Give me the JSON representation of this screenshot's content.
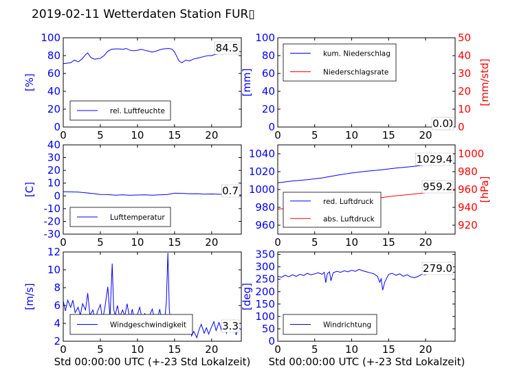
{
  "title": "2019-02-11 Wetterdaten Station FUR▯",
  "shared_xlabel": "Std 00:00:00 UTC (+-23 Std Lokalzeit)",
  "colors": {
    "blue": "#0000ff",
    "red": "#ff0000",
    "black": "#000000"
  },
  "chart_data": [
    {
      "type": "line",
      "id": "humidity",
      "ylabel": "[%]",
      "ylim": [
        0,
        100
      ],
      "yticks": [
        0,
        20,
        40,
        60,
        80,
        100
      ],
      "xlim": [
        0,
        24
      ],
      "xticks": [
        0,
        5,
        10,
        15,
        20
      ],
      "legend": "lower-left",
      "annotation": "84.5",
      "series": [
        {
          "name": "rel. Luftfeuchte",
          "color": "#0000ff",
          "x": [
            0,
            1,
            1.5,
            2,
            2.5,
            3,
            3.3,
            3.7,
            4.2,
            5,
            5.5,
            6,
            6.5,
            7,
            7.5,
            8,
            8.5,
            9,
            9.5,
            10,
            10.5,
            11,
            11.5,
            12,
            12.5,
            13,
            13.5,
            14,
            14.3,
            14.7,
            15,
            15.3,
            15.6,
            16,
            16.5,
            17,
            17.5,
            18,
            18.5,
            19,
            19.5,
            20,
            20.5,
            21,
            21.5,
            22,
            22.5,
            23,
            23.5,
            24
          ],
          "y": [
            71,
            72,
            75,
            73,
            76,
            81,
            83,
            78,
            76,
            77,
            80,
            85,
            87,
            87.5,
            87.5,
            87,
            88,
            86,
            85.5,
            86,
            87,
            86,
            85,
            84,
            85,
            86.5,
            87.5,
            88,
            88,
            87,
            84,
            79,
            74,
            72,
            75,
            74,
            76,
            77,
            78,
            79,
            80,
            80,
            81.5,
            82,
            83,
            82,
            84,
            84,
            84.5,
            84.5
          ]
        }
      ]
    },
    {
      "type": "line",
      "id": "precipitation",
      "ylabel": "[mm]",
      "ylabel_right": "[mm/std]",
      "ylim": [
        0,
        100
      ],
      "yticks": [
        0,
        20,
        40,
        60,
        80,
        100
      ],
      "ylim_right": [
        0,
        50
      ],
      "yticks_right": [
        0,
        10,
        20,
        30,
        40,
        50
      ],
      "xlim": [
        0,
        24
      ],
      "xticks": [
        0,
        5,
        10,
        15,
        20
      ],
      "legend": "top-left",
      "annotations": [
        "0.0",
        "0.0"
      ],
      "series": [
        {
          "name": "kum. Niederschlag",
          "color": "#0000ff",
          "axis": "left",
          "x": [
            0,
            24
          ],
          "y": [
            0,
            0
          ]
        },
        {
          "name": "Niederschlagsrate",
          "color": "#ff0000",
          "axis": "right",
          "x": [
            0,
            24
          ],
          "y": [
            0,
            0
          ]
        }
      ]
    },
    {
      "type": "line",
      "id": "temperature",
      "ylabel": "[C]",
      "ylim": [
        -30,
        40
      ],
      "yticks": [
        -30,
        -20,
        -10,
        0,
        10,
        20,
        30,
        40
      ],
      "xlim": [
        0,
        24
      ],
      "xticks": [
        0,
        5,
        10,
        15,
        20
      ],
      "legend": "lower-left",
      "annotation": "0.7",
      "series": [
        {
          "name": "Lufttemperatur",
          "color": "#0000ff",
          "x": [
            0,
            1,
            2,
            3,
            4,
            5,
            6,
            7,
            8,
            9,
            10,
            11,
            12,
            13,
            14,
            15,
            16,
            17,
            18,
            19,
            20,
            21,
            22,
            23,
            24
          ],
          "y": [
            3.2,
            3.1,
            3.0,
            2.4,
            1.8,
            1.1,
            1.0,
            0.6,
            0.8,
            0.5,
            0.7,
            0.8,
            0.6,
            0.8,
            1.0,
            2.1,
            2.0,
            1.6,
            1.7,
            1.4,
            1.5,
            1.3,
            1.1,
            0.8,
            0.7
          ]
        }
      ]
    },
    {
      "type": "line",
      "id": "pressure",
      "ylabel_right": "[hPa]",
      "ylim": [
        950,
        1050
      ],
      "yticks": [
        960,
        980,
        1000,
        1020,
        1040
      ],
      "ylim_right": [
        910,
        1010
      ],
      "yticks_right": [
        920,
        940,
        960,
        980,
        1000
      ],
      "xlim": [
        0,
        24
      ],
      "xticks": [
        0,
        5,
        10,
        15,
        20
      ],
      "legend": "lower-left",
      "annotations": [
        "1029.4",
        "959.2"
      ],
      "series": [
        {
          "name": "red. Luftdruck",
          "color": "#0000ff",
          "axis": "left",
          "x": [
            0,
            2,
            4,
            6,
            8,
            10,
            12,
            14,
            16,
            18,
            20,
            22,
            24
          ],
          "y": [
            1007.5,
            1009.5,
            1011,
            1013,
            1016,
            1018.5,
            1020.5,
            1022,
            1024,
            1025.5,
            1027.5,
            1028.8,
            1029.4
          ]
        },
        {
          "name": "abs. Luftdruck",
          "color": "#ff0000",
          "axis": "right",
          "x": [
            0,
            2,
            4,
            6,
            8,
            10,
            12,
            14,
            16,
            18,
            20,
            22,
            24
          ],
          "y": [
            938,
            939.5,
            941,
            943,
            945.5,
            947.5,
            949.5,
            951,
            953,
            954.5,
            956.5,
            958.2,
            959.2
          ]
        }
      ]
    },
    {
      "type": "line",
      "id": "windspeed",
      "ylabel": "[m/s]",
      "ylim": [
        2,
        12
      ],
      "yticks": [
        2,
        4,
        6,
        8,
        10,
        12
      ],
      "xlim": [
        0,
        24
      ],
      "xticks": [
        0,
        5,
        10,
        15,
        20
      ],
      "legend": "lower-left",
      "annotation": "3.3",
      "series": [
        {
          "name": "Windgeschwindigkeit",
          "color": "#0000ff",
          "x": [
            0,
            0.3,
            0.6,
            1,
            1.3,
            1.6,
            2,
            2.3,
            2.6,
            3,
            3.3,
            3.6,
            4,
            4.3,
            4.6,
            5,
            5.3,
            5.6,
            6,
            6.3,
            6.6,
            6.8,
            7,
            7.3,
            7.6,
            8,
            8.3,
            8.6,
            9,
            9.3,
            9.6,
            10,
            10.3,
            10.6,
            11,
            11.3,
            11.6,
            12,
            12.3,
            12.6,
            13,
            13.3,
            13.6,
            13.9,
            14.1,
            14.3,
            14.6,
            15,
            15.3,
            15.6,
            16,
            16.3,
            16.6,
            17,
            17.3,
            17.6,
            18,
            18.3,
            18.6,
            19,
            19.3,
            19.6,
            20,
            20.3,
            20.6,
            21,
            21.3,
            21.6,
            22,
            22.3,
            22.6,
            23,
            23.3,
            23.6,
            24
          ],
          "y": [
            6.5,
            5.4,
            6.6,
            5.8,
            6.6,
            5.2,
            5.8,
            4.9,
            6.2,
            5.5,
            7.4,
            4.9,
            5.5,
            4.2,
            5.3,
            6.1,
            4.4,
            5.7,
            8.1,
            4.6,
            10.7,
            5.6,
            4.9,
            6.0,
            4.7,
            5.5,
            4.8,
            6.2,
            4.4,
            5.6,
            4.3,
            5.0,
            5.8,
            4.6,
            5.1,
            4.3,
            4.8,
            5.6,
            4.5,
            4.1,
            5.6,
            4.3,
            3.6,
            6.5,
            11.9,
            5.5,
            3.4,
            3.8,
            4.7,
            3.1,
            3.9,
            2.8,
            3.2,
            4.3,
            2.6,
            3.1,
            2.4,
            3.3,
            3.9,
            2.9,
            3.5,
            2.8,
            3.6,
            4.2,
            3.2,
            4.1,
            3.3,
            4.3,
            2.9,
            3.8,
            3.3,
            4.4,
            2.7,
            3.5,
            3.3
          ]
        }
      ]
    },
    {
      "type": "line",
      "id": "winddirection",
      "ylabel": "[deg]",
      "ylim": [
        0,
        360
      ],
      "yticks": [
        0,
        50,
        100,
        150,
        200,
        250,
        300,
        350
      ],
      "xlim": [
        0,
        24
      ],
      "xticks": [
        0,
        5,
        10,
        15,
        20
      ],
      "legend": "lower-left",
      "annotation": "279.0",
      "series": [
        {
          "name": "Windrichtung",
          "color": "#0000ff",
          "x": [
            0,
            0.5,
            1,
            1.5,
            2,
            2.5,
            3,
            3.5,
            4,
            4.5,
            5,
            5.5,
            6,
            6.3,
            6.5,
            6.7,
            7,
            7.2,
            7.5,
            8,
            8.5,
            9,
            9.5,
            10,
            10.5,
            11,
            11.5,
            12,
            12.5,
            13,
            13.5,
            13.8,
            14,
            14.2,
            14.5,
            15,
            15.5,
            16,
            16.5,
            17,
            17.5,
            18,
            18.5,
            19,
            19.5,
            20,
            20.5,
            21,
            21.5,
            22,
            22.5,
            23,
            23.5,
            24
          ],
          "y": [
            262,
            258,
            266,
            260,
            268,
            262,
            270,
            265,
            274,
            268,
            272,
            276,
            270,
            278,
            236,
            272,
            280,
            244,
            276,
            282,
            278,
            284,
            280,
            286,
            282,
            290,
            284,
            280,
            276,
            272,
            262,
            238,
            252,
            206,
            240,
            270,
            274,
            266,
            272,
            262,
            268,
            260,
            256,
            262,
            270,
            268,
            276,
            272,
            282,
            276,
            284,
            280,
            276,
            279
          ]
        }
      ]
    }
  ]
}
